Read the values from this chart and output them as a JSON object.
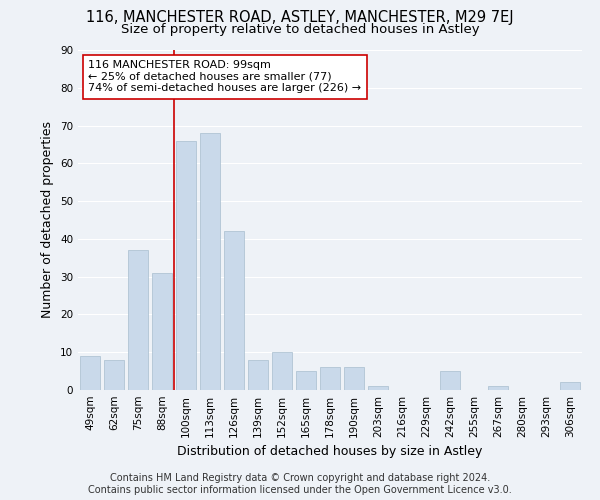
{
  "title": "116, MANCHESTER ROAD, ASTLEY, MANCHESTER, M29 7EJ",
  "subtitle": "Size of property relative to detached houses in Astley",
  "xlabel": "Distribution of detached houses by size in Astley",
  "ylabel": "Number of detached properties",
  "categories": [
    "49sqm",
    "62sqm",
    "75sqm",
    "88sqm",
    "100sqm",
    "113sqm",
    "126sqm",
    "139sqm",
    "152sqm",
    "165sqm",
    "178sqm",
    "190sqm",
    "203sqm",
    "216sqm",
    "229sqm",
    "242sqm",
    "255sqm",
    "267sqm",
    "280sqm",
    "293sqm",
    "306sqm"
  ],
  "values": [
    9,
    8,
    37,
    31,
    66,
    68,
    42,
    8,
    10,
    5,
    6,
    6,
    1,
    0,
    0,
    5,
    0,
    1,
    0,
    0,
    2
  ],
  "bar_color": "#c9d9ea",
  "bar_edge_color": "#a8bece",
  "vline_x_index": 4,
  "vline_color": "#cc0000",
  "annotation_text": "116 MANCHESTER ROAD: 99sqm\n← 25% of detached houses are smaller (77)\n74% of semi-detached houses are larger (226) →",
  "annotation_box_color": "#ffffff",
  "annotation_box_edge": "#cc0000",
  "ylim": [
    0,
    90
  ],
  "yticks": [
    0,
    10,
    20,
    30,
    40,
    50,
    60,
    70,
    80,
    90
  ],
  "footer_line1": "Contains HM Land Registry data © Crown copyright and database right 2024.",
  "footer_line2": "Contains public sector information licensed under the Open Government Licence v3.0.",
  "bg_color": "#eef2f7",
  "plot_bg_color": "#eef2f7",
  "title_fontsize": 10.5,
  "subtitle_fontsize": 9.5,
  "axis_label_fontsize": 9,
  "tick_fontsize": 7.5,
  "footer_fontsize": 7,
  "annotation_fontsize": 8
}
